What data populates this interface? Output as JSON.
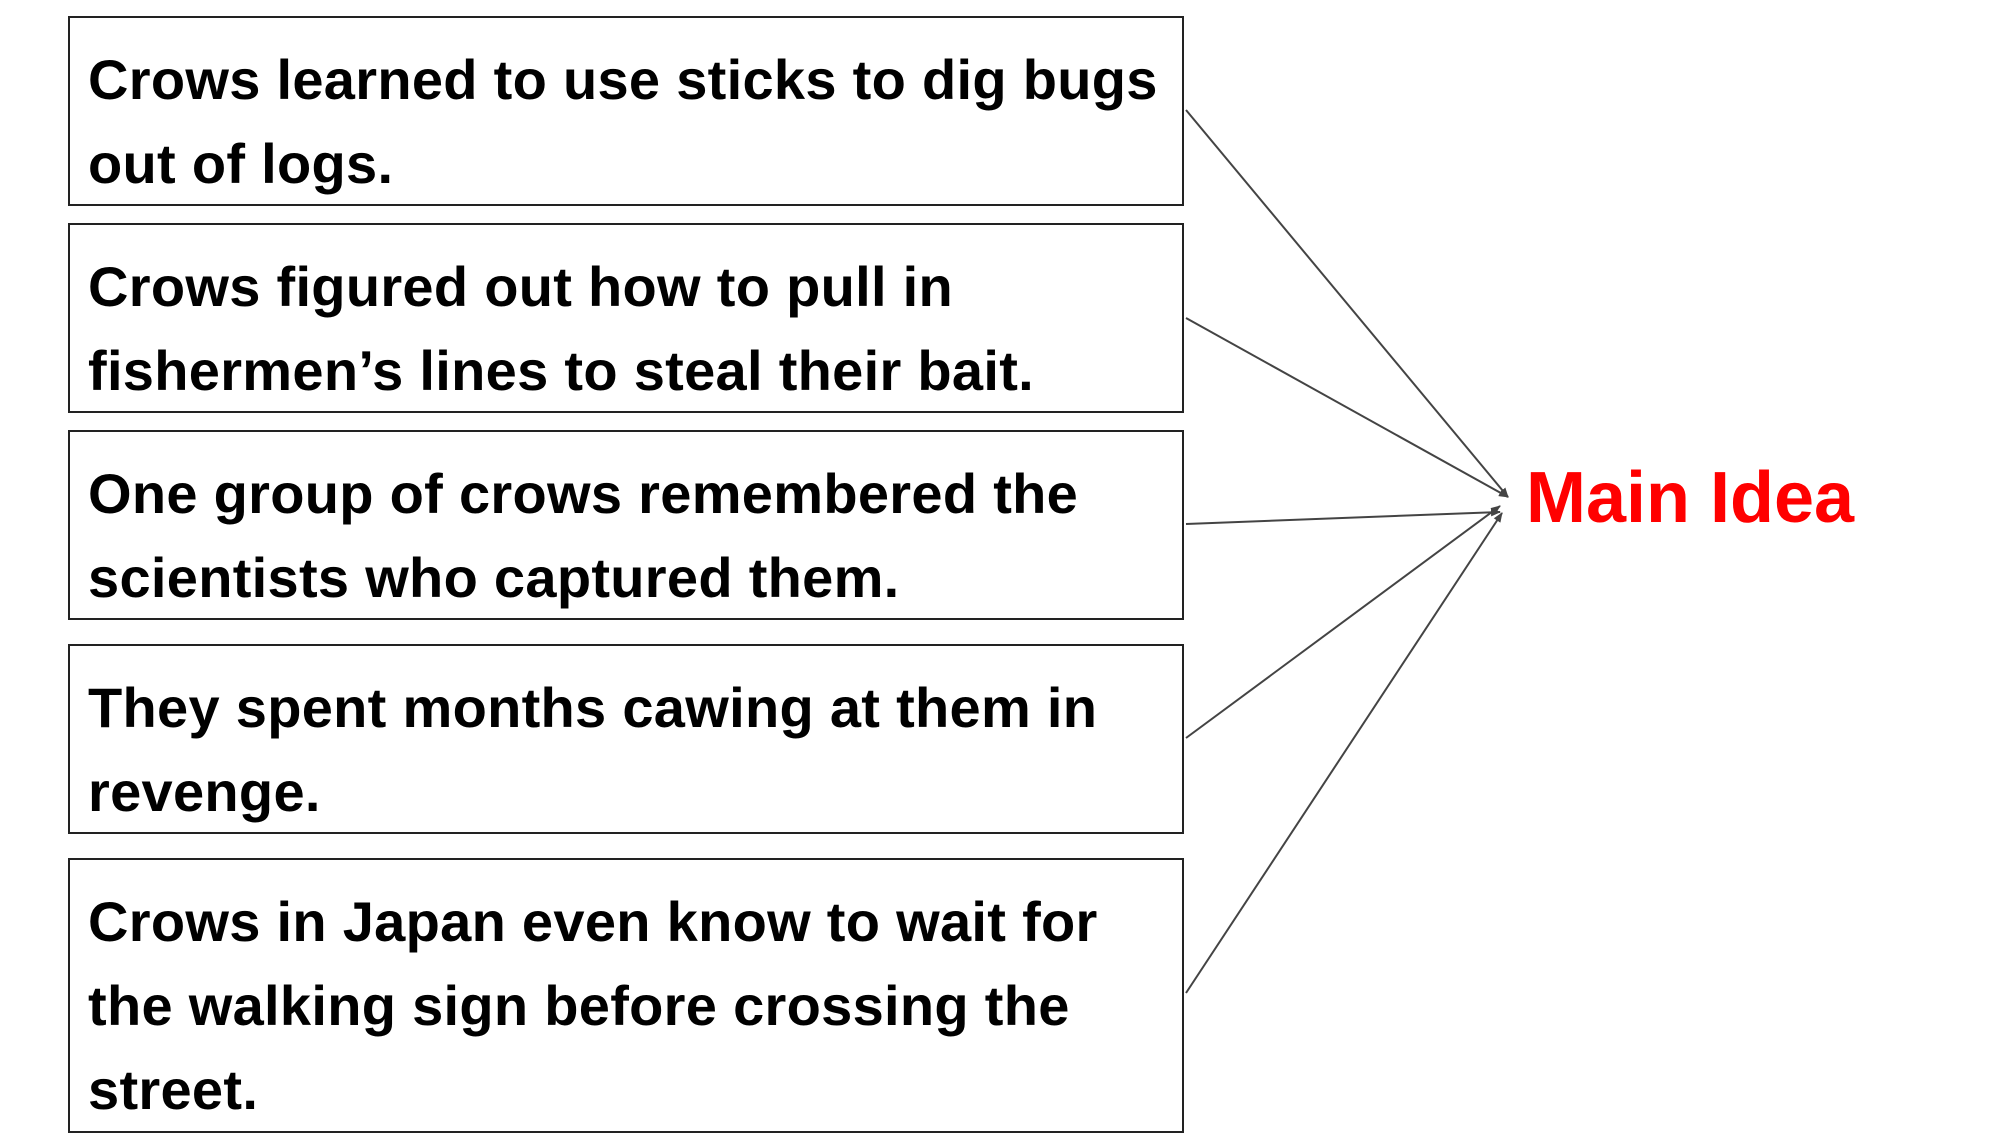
{
  "diagram": {
    "details": [
      {
        "id": "detail-1",
        "text": "Crows learned to use sticks to dig bugs out of logs."
      },
      {
        "id": "detail-2",
        "text": "Crows figured out how to pull in fishermen’s lines to steal their bait."
      },
      {
        "id": "detail-3",
        "text": "One group of crows remembered the scientists who captured them."
      },
      {
        "id": "detail-4",
        "text": "They spent months cawing at them in revenge."
      },
      {
        "id": "detail-5",
        "text": "Crows in Japan even know to wait for the walking sign before crossing the street."
      }
    ],
    "main_idea": {
      "label": "Main Idea",
      "color": "#ff0000"
    },
    "arrow_color": "#444444",
    "box_border_color": "#222222"
  }
}
